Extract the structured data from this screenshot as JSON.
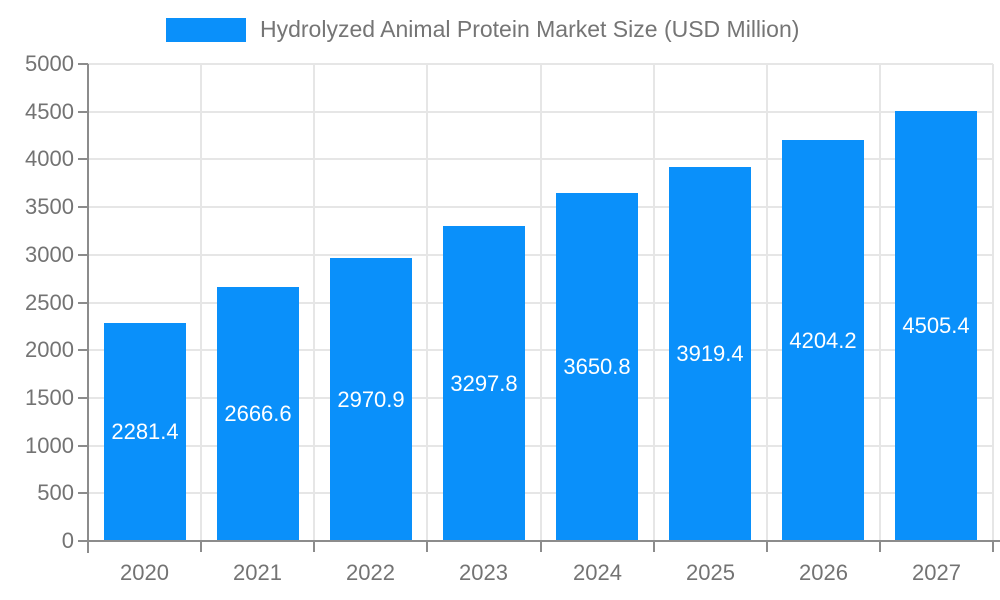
{
  "chart_data": {
    "type": "bar",
    "title": "Hydrolyzed Animal Protein Market Size (USD Million)",
    "legend": [
      {
        "label": "Hydrolyzed Animal Protein Market Size (USD Million)"
      }
    ],
    "legend_position": "top",
    "categories": [
      "2020",
      "2021",
      "2022",
      "2023",
      "2024",
      "2025",
      "2026",
      "2027"
    ],
    "values": [
      2281.4,
      2666.6,
      2970.9,
      3297.8,
      3650.8,
      3919.4,
      4204.2,
      4505.4
    ],
    "value_labels": [
      "2281.4",
      "2666.6",
      "2970.9",
      "3297.8",
      "3650.8",
      "3919.4",
      "4204.2",
      "4505.4"
    ],
    "xlabel": "",
    "ylabel": "",
    "ylim": [
      0,
      5000
    ],
    "ytick_step": 500,
    "yticks": [
      0,
      500,
      1000,
      1500,
      2000,
      2500,
      3000,
      3500,
      4000,
      4500,
      5000
    ],
    "ytick_labels": [
      "0",
      "500",
      "1000",
      "1500",
      "2000",
      "2500",
      "3000",
      "3500",
      "4000",
      "4500",
      "5000"
    ],
    "grid": true
  },
  "colors": {
    "bar": "#0A90FA",
    "axis": "#8C8C8C",
    "grid": "#E6E6E6",
    "tick_text": "#737373",
    "title_text": "#757575",
    "value_label_text": "#FFFFFF",
    "background": "#FFFFFF"
  }
}
